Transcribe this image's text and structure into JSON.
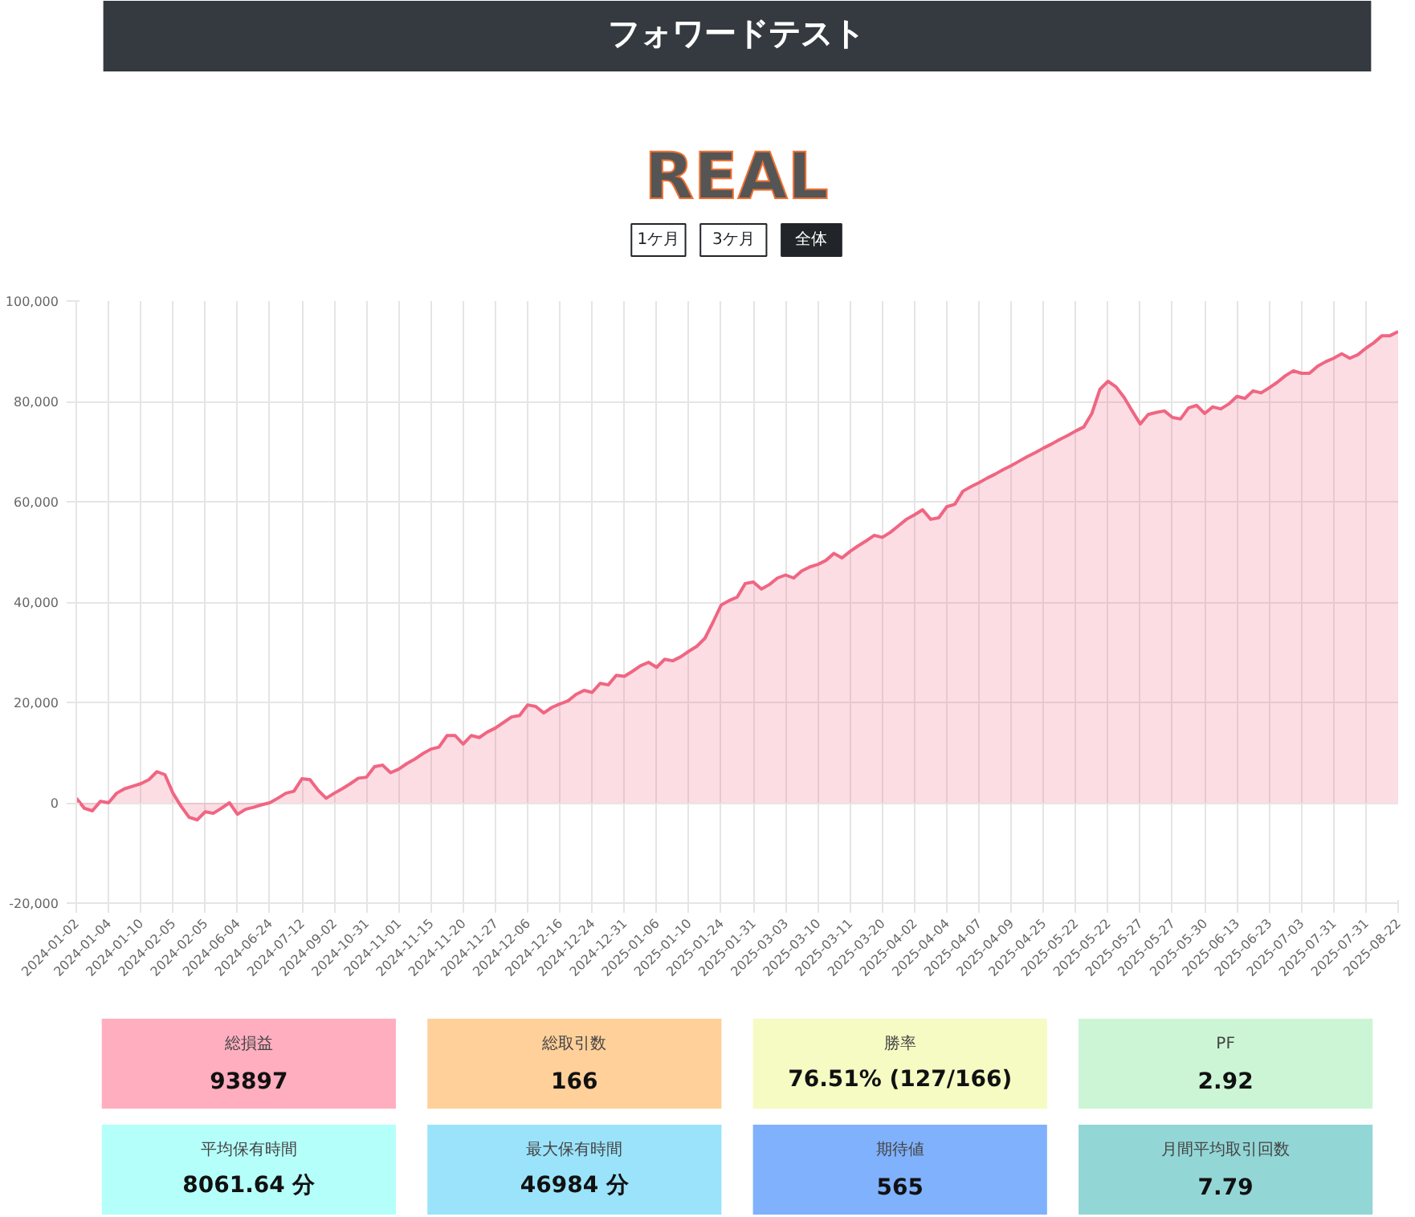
{
  "chart_data": [
    {
      "type": "area",
      "title": "フォワードテスト",
      "subtitle": "REAL",
      "annotations": [
        "1ケ月",
        "3ケ月",
        "全体"
      ],
      "categories": [
        "2024-01-02",
        null,
        null,
        null,
        "2024-01-04",
        null,
        null,
        null,
        "2024-01-10",
        null,
        null,
        null,
        "2024-02-05",
        null,
        null,
        null,
        "2024-02-05",
        null,
        null,
        null,
        "2024-06-04",
        null,
        null,
        null,
        "2024-06-24",
        null,
        null,
        null,
        "2024-07-12",
        null,
        null,
        null,
        "2024-09-02",
        null,
        null,
        null,
        "2024-10-31",
        null,
        null,
        null,
        "2024-11-01",
        null,
        null,
        null,
        "2024-11-15",
        null,
        null,
        null,
        "2024-11-20",
        null,
        null,
        null,
        "2024-11-27",
        null,
        null,
        null,
        "2024-12-06",
        null,
        null,
        null,
        "2024-12-16",
        null,
        null,
        null,
        "2024-12-24",
        null,
        null,
        null,
        "2024-12-31",
        null,
        null,
        null,
        "2025-01-06",
        null,
        null,
        null,
        "2025-01-10",
        null,
        null,
        null,
        "2025-01-24",
        null,
        null,
        null,
        "2025-01-31",
        null,
        null,
        null,
        "2025-03-03",
        null,
        null,
        null,
        "2025-03-10",
        null,
        null,
        null,
        "2025-03-11",
        null,
        null,
        null,
        "2025-03-20",
        null,
        null,
        null,
        "2025-04-02",
        null,
        null,
        null,
        "2025-04-04",
        null,
        null,
        null,
        "2025-04-07",
        null,
        null,
        null,
        "2025-04-09",
        null,
        null,
        null,
        "2025-04-25",
        null,
        null,
        null,
        "2025-05-22",
        null,
        null,
        null,
        "2025-05-22",
        null,
        null,
        null,
        "2025-05-27",
        null,
        null,
        null,
        "2025-05-27",
        null,
        null,
        null,
        "2025-05-30",
        null,
        null,
        null,
        "2025-06-13",
        null,
        null,
        null,
        "2025-06-23",
        null,
        null,
        null,
        "2025-07-03",
        null,
        null,
        null,
        "2025-07-31",
        null,
        null,
        null,
        "2025-07-31",
        null,
        null,
        null,
        "2025-08-22"
      ],
      "series": [
        {
          "color": "#f06682",
          "values": [
            900,
            -1100,
            -1600,
            300,
            0,
            1900,
            2800,
            3300,
            3800,
            4600,
            6200,
            5600,
            1900,
            -700,
            -2900,
            -3400,
            -1800,
            -2100,
            -1100,
            0,
            -2300,
            -1300,
            -900,
            -400,
            0,
            900,
            1900,
            2300,
            4800,
            4600,
            2500,
            900,
            1900,
            2800,
            3800,
            4900,
            5100,
            7200,
            7500,
            6000,
            6700,
            7800,
            8700,
            9800,
            10700,
            11100,
            13400,
            13400,
            11700,
            13400,
            13000,
            14100,
            14900,
            16000,
            17100,
            17400,
            19500,
            19200,
            17900,
            19000,
            19700,
            20300,
            21600,
            22400,
            22000,
            23800,
            23500,
            25400,
            25200,
            26200,
            27300,
            28000,
            27000,
            28600,
            28300,
            29100,
            30200,
            31200,
            32800,
            36000,
            39400,
            40300,
            41000,
            43700,
            44000,
            42600,
            43500,
            44800,
            45400,
            44800,
            46200,
            47000,
            47500,
            48300,
            49700,
            48800,
            50100,
            51200,
            52200,
            53300,
            52900,
            53900,
            55200,
            56500,
            57400,
            58400,
            56500,
            56800,
            59000,
            59500,
            62100,
            63000,
            63800,
            64700,
            65500,
            66400,
            67200,
            68100,
            69000,
            69800,
            70700,
            71500,
            72400,
            73200,
            74100,
            74900,
            77600,
            82400,
            84000,
            82900,
            80800,
            78100,
            75500,
            77400,
            77800,
            78100,
            76800,
            76500,
            78700,
            79200,
            77600,
            78900,
            78500,
            79500,
            81000,
            80600,
            82100,
            81700,
            82700,
            83800,
            85100,
            86100,
            85600,
            85600,
            87000,
            87900,
            88600,
            89500,
            88600,
            89300,
            90600,
            91700,
            93100,
            93100,
            93900
          ]
        }
      ],
      "ylim": [
        -20000,
        100000
      ],
      "yticks": [
        {
          "value": -20000,
          "label": "-20,000"
        },
        0,
        {
          "value": 20000,
          "label": "20,000"
        },
        {
          "value": 40000,
          "label": "40,000"
        },
        {
          "value": 60000,
          "label": "60,000"
        },
        {
          "value": 80000,
          "label": "80,000"
        },
        {
          "value": 100000,
          "label": "100,000"
        }
      ],
      "grid": true,
      "marker": "none",
      "line_style": "solid"
    },
    {
      "type": "other",
      "annotations": [
        "総損益",
        "93897",
        "総取引数",
        "166",
        "勝率",
        "76.51% (127/166)",
        "PF",
        "2.92",
        "平均保有時間",
        "8061.64 分",
        "最大保有時間",
        "46984 分",
        "期待値",
        "565",
        "月間平均取引回数",
        "7.79"
      ],
      "colors": [
        "#ffaebf",
        "#ffd09a",
        "#f5fbc3",
        "#ccf5d5",
        "#b5fffa",
        "#9ae3fb",
        "#80b1fc",
        "#93d6d6"
      ]
    }
  ]
}
